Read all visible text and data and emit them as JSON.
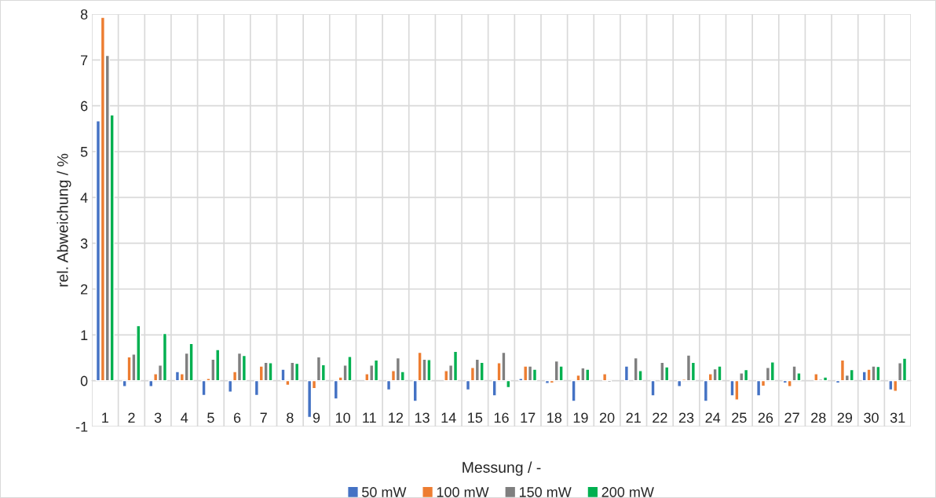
{
  "chart_data": {
    "type": "bar",
    "xlabel": "Messung / -",
    "ylabel": "rel. Abweichung / %",
    "categories": [
      "1",
      "2",
      "3",
      "4",
      "5",
      "6",
      "7",
      "8",
      "9",
      "10",
      "11",
      "12",
      "13",
      "14",
      "15",
      "16",
      "17",
      "18",
      "19",
      "20",
      "21",
      "22",
      "23",
      "24",
      "25",
      "26",
      "27",
      "28",
      "29",
      "30",
      "31"
    ],
    "series": [
      {
        "name": "50 mW",
        "color": "#4472c4",
        "values": [
          5.67,
          -0.13,
          -0.13,
          0.2,
          -0.32,
          -0.25,
          -0.32,
          0.25,
          -0.8,
          -0.4,
          null,
          -0.2,
          -0.45,
          null,
          -0.2,
          -0.33,
          0.05,
          -0.06,
          -0.45,
          null,
          0.32,
          -0.33,
          -0.13,
          -0.45,
          -0.33,
          -0.33,
          -0.05,
          null,
          -0.05,
          0.2,
          -0.2
        ]
      },
      {
        "name": "100 mW",
        "color": "#ed7d31",
        "values": [
          7.93,
          0.52,
          0.15,
          0.15,
          0.05,
          0.2,
          0.32,
          -0.1,
          -0.17,
          0.08,
          0.15,
          0.22,
          0.62,
          0.22,
          0.29,
          0.39,
          0.32,
          -0.05,
          0.12,
          0.15,
          null,
          null,
          0.03,
          0.15,
          -0.42,
          -0.12,
          -0.13,
          0.15,
          0.45,
          0.25,
          -0.23
        ]
      },
      {
        "name": "150 mW",
        "color": "#7f7f7f",
        "values": [
          7.1,
          0.58,
          0.34,
          0.6,
          0.47,
          0.6,
          0.4,
          0.4,
          0.52,
          0.34,
          0.34,
          0.5,
          0.47,
          0.34,
          0.47,
          0.62,
          0.32,
          0.43,
          0.28,
          -0.03,
          0.5,
          0.4,
          0.56,
          0.26,
          0.17,
          0.29,
          0.32,
          0.03,
          0.12,
          0.32,
          0.39
        ]
      },
      {
        "name": "200 mW",
        "color": "#00b050",
        "values": [
          5.8,
          1.2,
          1.03,
          0.81,
          0.68,
          0.55,
          0.39,
          0.38,
          0.35,
          0.53,
          0.45,
          0.2,
          0.46,
          0.64,
          0.4,
          -0.15,
          0.25,
          0.32,
          0.25,
          null,
          0.22,
          0.3,
          0.4,
          0.32,
          0.24,
          0.41,
          0.17,
          0.08,
          0.24,
          0.31,
          0.49
        ]
      }
    ],
    "ylim": [
      -1,
      8
    ],
    "yticks": [
      -1,
      0,
      1,
      2,
      3,
      4,
      5,
      6,
      7,
      8
    ],
    "grid": true,
    "legend": "bottom"
  }
}
